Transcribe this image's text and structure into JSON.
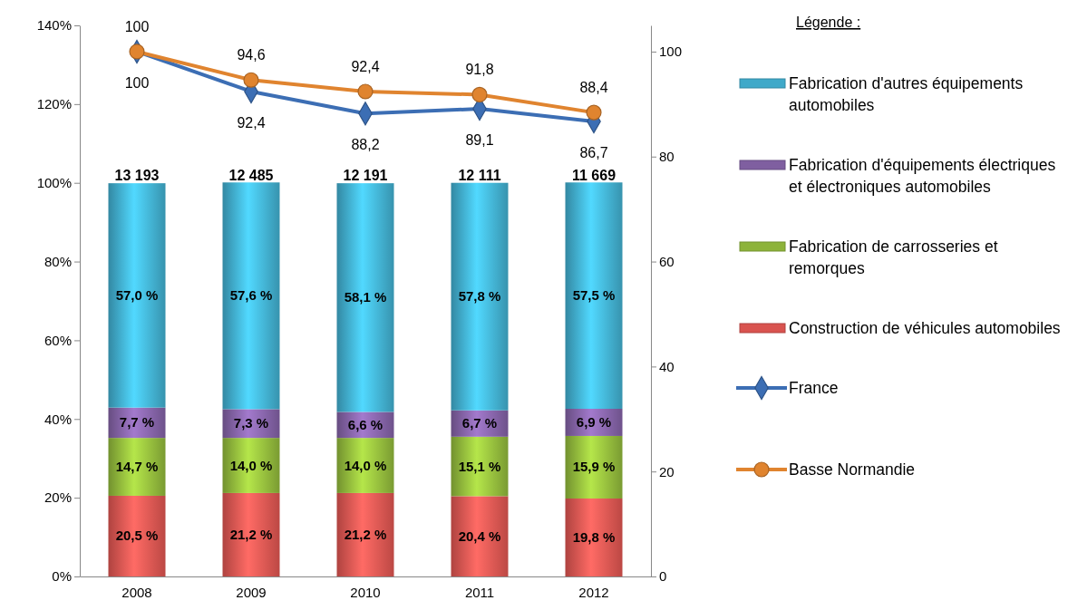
{
  "chart_data": {
    "type": "bar",
    "stacked": true,
    "legend_title": "Légende :",
    "legend": "right",
    "categories": [
      "2008",
      "2009",
      "2010",
      "2011",
      "2012"
    ],
    "ylim": [
      0,
      140
    ],
    "yticks": [
      {
        "value": 0,
        "label": "0%"
      },
      {
        "value": 20,
        "label": "20%"
      },
      {
        "value": 40,
        "label": "40%"
      },
      {
        "value": 60,
        "label": "60%"
      },
      {
        "value": 80,
        "label": "80%"
      },
      {
        "value": 100,
        "label": "100%"
      },
      {
        "value": 120,
        "label": "120%"
      },
      {
        "value": 140,
        "label": "140%"
      }
    ],
    "y2lim": [
      0,
      105
    ],
    "y2ticks": [
      0,
      20,
      40,
      60,
      80,
      100
    ],
    "annotations": [
      {
        "text": "13 193",
        "x": "2008",
        "y": 100
      },
      {
        "text": "12 485",
        "x": "2009",
        "y": 100
      },
      {
        "text": "12 191",
        "x": "2010",
        "y": 100
      },
      {
        "text": "12 111",
        "x": "2011",
        "y": 100
      },
      {
        "text": "11 669",
        "x": "2012",
        "y": 100
      }
    ],
    "series": [
      {
        "name": "Construction de véhicules automobiles",
        "color": "#d9534f",
        "values": [
          20.5,
          21.2,
          21.2,
          20.4,
          19.8
        ],
        "value_labels": [
          "20,5 %",
          "21,2 %",
          "21,2 %",
          "20,4 %",
          "19,8 %"
        ]
      },
      {
        "name": "Fabrication de carrosseries et remorques",
        "color": "#8db33a",
        "values": [
          14.7,
          14.0,
          14.0,
          15.1,
          15.9
        ],
        "value_labels": [
          "14,7 %",
          "14,0 %",
          "14,0 %",
          "15,1 %",
          "15,9 %"
        ]
      },
      {
        "name": "Fabrication d'équipements électriques et électroniques automobiles",
        "color": "#7f5fa0",
        "values": [
          7.7,
          7.3,
          6.6,
          6.7,
          6.9
        ],
        "value_labels": [
          "7,7 %",
          "7,3 %",
          "6,6 %",
          "6,7 %",
          "6,9 %"
        ]
      },
      {
        "name": "Fabrication d'autres équipements automobiles",
        "color": "#3fa9c9",
        "values": [
          57.0,
          57.6,
          58.1,
          57.8,
          57.5
        ],
        "value_labels": [
          "57,0 %",
          "57,6 %",
          "58,1 %",
          "57,8 %",
          "57,5 %"
        ]
      },
      {
        "name": "France",
        "type": "line",
        "axis": "y2",
        "color": "#3c6eb4",
        "marker": "diamond",
        "values": [
          100,
          92.4,
          88.2,
          89.1,
          86.7
        ],
        "value_labels": [
          "100",
          "92,4",
          "88,2",
          "89,1",
          "86,7"
        ]
      },
      {
        "name": "Basse Normandie",
        "type": "line",
        "axis": "y2",
        "color": "#e0842f",
        "marker": "circle",
        "values": [
          100,
          94.6,
          92.4,
          91.8,
          88.4
        ],
        "value_labels": [
          "100",
          "94,6",
          "92,4",
          "91,8",
          "88,4"
        ]
      }
    ]
  }
}
